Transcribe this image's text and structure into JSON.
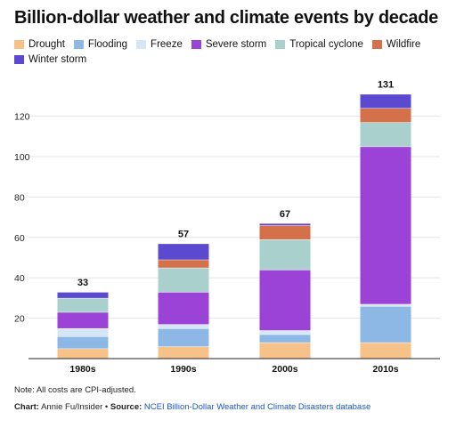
{
  "title": "Billion-dollar weather and climate events by decade",
  "note": "Note: All costs are CPI-adjusted.",
  "credit": {
    "label": "Chart:",
    "author": " Annie Fu/Insider • ",
    "source_label": "Source:",
    "source_link": "NCEI Billion-Dollar Weather and Climate Disasters database"
  },
  "chart_data": {
    "type": "bar",
    "stacked": true,
    "categories": [
      "1980s",
      "1990s",
      "2000s",
      "2010s"
    ],
    "totals": [
      "33",
      "57",
      "67",
      "131"
    ],
    "ylim": [
      0,
      130
    ],
    "yticks": [
      "20",
      "40",
      "60",
      "80",
      "100",
      "120"
    ],
    "ytick_values": [
      20,
      40,
      60,
      80,
      100,
      120
    ],
    "legend_position": "top",
    "series": [
      {
        "name": "Drought",
        "color": "#f7c28a",
        "values": [
          5,
          6,
          8,
          8
        ]
      },
      {
        "name": "Flooding",
        "color": "#8db8e6",
        "values": [
          6,
          9,
          4,
          18
        ]
      },
      {
        "name": "Freeze",
        "color": "#d6e6f7",
        "values": [
          4,
          2,
          2,
          1
        ]
      },
      {
        "name": "Severe storm",
        "color": "#9a43d6",
        "values": [
          8,
          16,
          30,
          78
        ]
      },
      {
        "name": "Tropical cyclone",
        "color": "#a9d0cd",
        "values": [
          7,
          12,
          15,
          12
        ]
      },
      {
        "name": "Wildfire",
        "color": "#d4714a",
        "values": [
          0,
          4,
          7,
          7
        ]
      },
      {
        "name": "Winter storm",
        "color": "#5b4ad0",
        "values": [
          3,
          8,
          1,
          7
        ]
      }
    ]
  }
}
